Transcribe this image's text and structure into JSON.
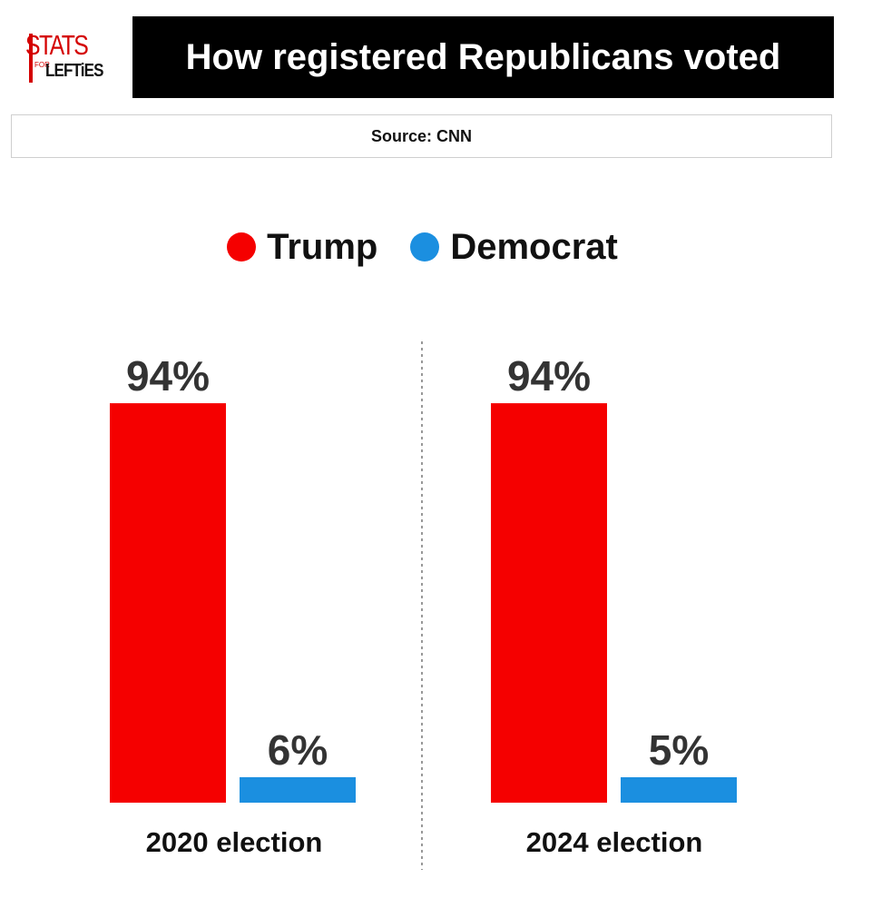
{
  "logo": {
    "line1": "STATS",
    "small": "FOR",
    "line2": "LEFTiES"
  },
  "title": "How registered Republicans voted",
  "source": "Source: CNN",
  "colors": {
    "trump": "#f50000",
    "democrat": "#1b8fe0",
    "text": "#333333",
    "divider": "#555555"
  },
  "chart_data": {
    "type": "bar",
    "title": "How registered Republicans voted",
    "legend": {
      "position": "top-center",
      "entries": [
        "Trump",
        "Democrat"
      ]
    },
    "categories": [
      "2020 election",
      "2024 election"
    ],
    "series": [
      {
        "name": "Trump",
        "values": [
          94,
          94
        ],
        "labels": [
          "94%",
          "94%"
        ]
      },
      {
        "name": "Democrat",
        "values": [
          6,
          5
        ],
        "labels": [
          "6%",
          "5%"
        ]
      }
    ],
    "ylim": [
      0,
      100
    ],
    "grid": false,
    "xlabel": "",
    "ylabel": ""
  }
}
